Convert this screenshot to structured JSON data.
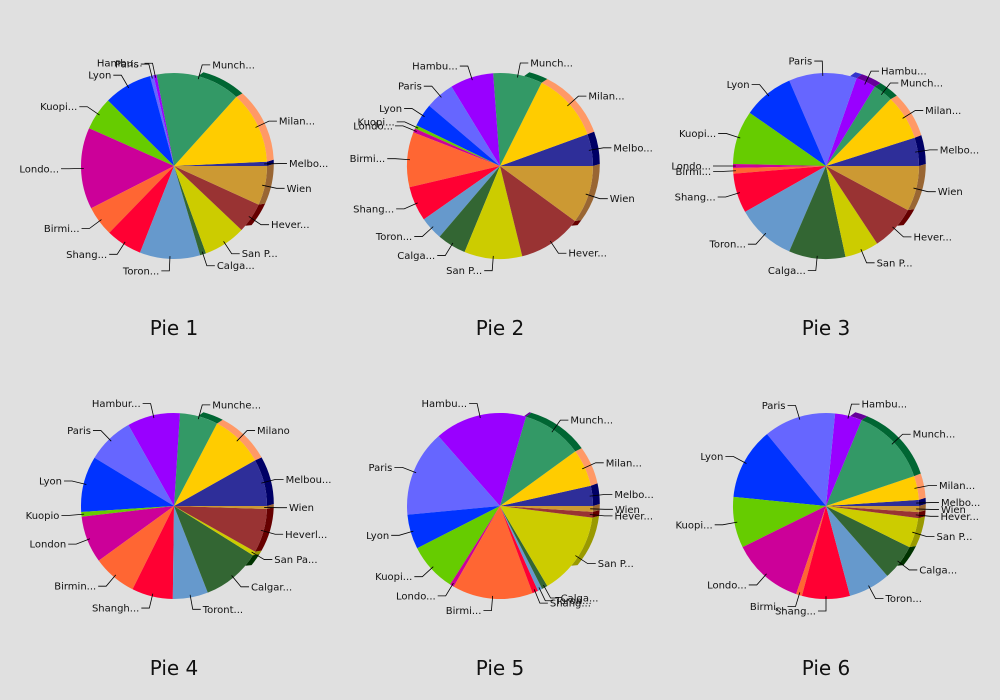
{
  "chart_data": {
    "type": "pie",
    "categories": [
      "Melbourne",
      "Milano",
      "Munchen",
      "Hamburg",
      "Paris",
      "Lyon",
      "Kuopio",
      "London",
      "Birmingham",
      "Shanghai",
      "Toronto",
      "Calgary",
      "San Paulo",
      "Heverlee",
      "Wien"
    ],
    "labels_cut": [
      [
        "Melbo...",
        "Milan...",
        "Munch...",
        "Hambu...",
        "Paris",
        "Lyon",
        "Kuopi...",
        "Londo...",
        "Birmi...",
        "Shang...",
        "Toron...",
        "Calga...",
        "San P...",
        "Hever...",
        "Wien"
      ],
      [
        "Melbo...",
        "Milan...",
        "Munch...",
        "Hambu...",
        "Paris",
        "Lyon",
        "Kuopi...",
        "Londo...",
        "Birmi...",
        "Shang...",
        "Toron...",
        "Calga...",
        "San P...",
        "Hever...",
        "Wien"
      ],
      [
        "Melbo...",
        "Milan...",
        "Munch...",
        "Hambu...",
        "Paris",
        "Lyon",
        "Kuopi...",
        "Londo...",
        "Birmi...",
        "Shang...",
        "Toron...",
        "Calga...",
        "San P...",
        "Hever...",
        "Wien"
      ],
      [
        "Melbou...",
        "Milano",
        "Munche...",
        "Hambur...",
        "Paris",
        "Lyon",
        "Kuopio",
        "London",
        "Birmin...",
        "Shangh...",
        "Toront...",
        "Calgar...",
        "San Pa...",
        "Heverl...",
        "Wien"
      ],
      [
        "Melbo...",
        "Milan...",
        "Munch...",
        "Hambu...",
        "Paris",
        "Lyon",
        "Kuopi...",
        "Londo...",
        "Birmi...",
        "Shang...",
        "Toron...",
        "Calga...",
        "San P...",
        "Hever...",
        "Wien"
      ],
      [
        "Melbo...",
        "Milan...",
        "Munch...",
        "Hambu...",
        "Paris",
        "Lyon",
        "Kuopi...",
        "Londo...",
        "Birmi...",
        "Shang...",
        "Toron...",
        "Calga...",
        "San P...",
        "Hever...",
        "Wien"
      ]
    ],
    "colors": [
      "#2e2e99",
      "#ffcc00",
      "#339966",
      "#9900ff",
      "#6666ff",
      "#0033ff",
      "#66cc00",
      "#cc0099",
      "#ff6633",
      "#ff0033",
      "#6699cc",
      "#336633",
      "#cccc00",
      "#993333",
      "#cc9933"
    ],
    "side_colors": [
      "#000066",
      "#ff9966",
      "#006633",
      "#660099",
      "#3333cc",
      "#0000cc",
      "#339900",
      "#990066",
      "#cc3300",
      "#cc0000",
      "#336699",
      "#003300",
      "#999900",
      "#660000",
      "#996633"
    ],
    "series": [
      {
        "name": "Pie 1",
        "values": [
          0.7,
          12.0,
          14.0,
          0.5,
          0.6,
          8.0,
          5.5,
          13.5,
          5.0,
          6.0,
          10.0,
          1.0,
          7.0,
          5.0,
          6.5
        ]
      },
      {
        "name": "Pie 2",
        "values": [
          5.5,
          12.0,
          8.5,
          7.5,
          5.0,
          4.0,
          0.6,
          0.7,
          9.5,
          6.0,
          4.0,
          5.0,
          10.0,
          11.0,
          10.0
        ]
      },
      {
        "name": "Pie 3",
        "values": [
          5.0,
          8.0,
          3.5,
          3.5,
          12.0,
          9.0,
          9.5,
          0.7,
          1.0,
          7.0,
          10.5,
          10.0,
          6.0,
          8.0,
          8.0
        ]
      },
      {
        "name": "Pie 4",
        "values": [
          8.0,
          9.0,
          6.5,
          9.0,
          8.0,
          9.5,
          0.8,
          8.0,
          7.5,
          7.0,
          6.0,
          10.0,
          0.7,
          7.5,
          0.5
        ]
      },
      {
        "name": "Pie 5",
        "values": [
          3.5,
          6.5,
          10.5,
          16.0,
          15.0,
          6.0,
          8.5,
          0.7,
          14.0,
          1.0,
          0.8,
          1.0,
          14.5,
          1.0,
          1.0
        ]
      },
      {
        "name": "Pie 6",
        "values": [
          1.0,
          4.0,
          13.0,
          4.5,
          12.0,
          12.0,
          8.5,
          12.0,
          1.0,
          8.0,
          7.0,
          6.0,
          5.0,
          1.0,
          1.0
        ]
      }
    ]
  }
}
